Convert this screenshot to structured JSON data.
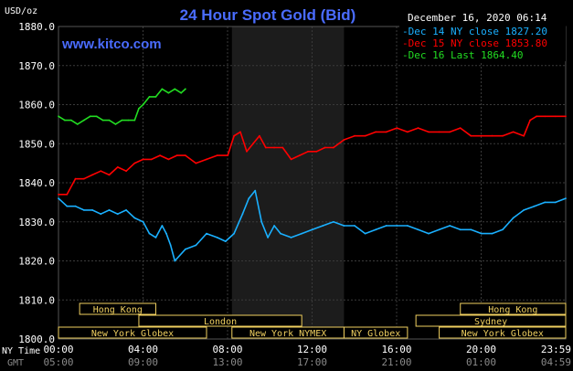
{
  "chart_data": {
    "type": "line",
    "title": "24 Hour Spot Gold (Bid)",
    "website": "www.kitco.com",
    "date_stamp": "December 16, 2020 06:14",
    "ylabel": "USD/oz",
    "ylim": [
      1800,
      1880
    ],
    "y_ticks": [
      "1800.0",
      "1810.0",
      "1820.0",
      "1830.0",
      "1840.0",
      "1850.0",
      "1860.0",
      "1870.0",
      "1880.0"
    ],
    "x_axis_label": "NY Time",
    "x_ticks": [
      "00:00",
      "04:00",
      "08:00",
      "12:00",
      "16:00",
      "20:00",
      "23:59"
    ],
    "gmt_axis_label": "GMT",
    "gmt_ticks": [
      "05:00",
      "09:00",
      "13:00",
      "17:00",
      "21:00",
      "01:00",
      "04:59"
    ],
    "x_range_hours": [
      0,
      23.98
    ],
    "grid": true,
    "legend_position": "top-right",
    "series": [
      {
        "name": "Dec 14 NY close 1827.20",
        "color": "#1ab0ff",
        "x": [
          0,
          0.4,
          0.8,
          1.2,
          1.6,
          2.0,
          2.4,
          2.8,
          3.2,
          3.6,
          4.0,
          4.3,
          4.6,
          4.9,
          5.1,
          5.3,
          5.5,
          6.0,
          6.5,
          7.0,
          7.5,
          7.9,
          8.3,
          8.7,
          9.0,
          9.3,
          9.6,
          9.9,
          10.2,
          10.5,
          11.0,
          11.5,
          12.0,
          12.5,
          13.0,
          13.5,
          14.0,
          14.5,
          15.0,
          15.5,
          16.0,
          16.5,
          17.0,
          17.5,
          18.0,
          18.5,
          19.0,
          19.5,
          20.0,
          20.5,
          21.0,
          21.5,
          22.0,
          22.5,
          23.0,
          23.5,
          23.98
        ],
        "values": [
          1836,
          1834,
          1834,
          1833,
          1833,
          1832,
          1833,
          1832,
          1833,
          1831,
          1830,
          1827,
          1826,
          1829,
          1827,
          1824,
          1820,
          1823,
          1824,
          1827,
          1826,
          1825,
          1827,
          1832,
          1836,
          1838,
          1830,
          1826,
          1829,
          1827,
          1826,
          1827,
          1828,
          1829,
          1830,
          1829,
          1829,
          1827,
          1828,
          1829,
          1829,
          1829,
          1828,
          1827,
          1828,
          1829,
          1828,
          1828,
          1827,
          1827,
          1828,
          1831,
          1833,
          1834,
          1835,
          1835,
          1836
        ]
      },
      {
        "name": "Dec 15 NY close 1853.80",
        "color": "#ff0000",
        "x": [
          0,
          0.4,
          0.8,
          1.2,
          1.6,
          2.0,
          2.4,
          2.8,
          3.2,
          3.6,
          4.0,
          4.4,
          4.8,
          5.2,
          5.6,
          6.0,
          6.5,
          7.0,
          7.5,
          8.0,
          8.3,
          8.6,
          8.9,
          9.2,
          9.5,
          9.8,
          10.2,
          10.6,
          11.0,
          11.4,
          11.8,
          12.2,
          12.6,
          13.0,
          13.5,
          14.0,
          14.5,
          15.0,
          15.5,
          16.0,
          16.5,
          17.0,
          17.5,
          18.0,
          18.5,
          19.0,
          19.5,
          20.0,
          20.5,
          21.0,
          21.5,
          22.0,
          22.3,
          22.6,
          23.0,
          23.5,
          23.98
        ],
        "values": [
          1837,
          1837,
          1841,
          1841,
          1842,
          1843,
          1842,
          1844,
          1843,
          1845,
          1846,
          1846,
          1847,
          1846,
          1847,
          1847,
          1845,
          1846,
          1847,
          1847,
          1852,
          1853,
          1848,
          1850,
          1852,
          1849,
          1849,
          1849,
          1846,
          1847,
          1848,
          1848,
          1849,
          1849,
          1851,
          1852,
          1852,
          1853,
          1853,
          1854,
          1853,
          1854,
          1853,
          1853,
          1853,
          1854,
          1852,
          1852,
          1852,
          1852,
          1853,
          1852,
          1856,
          1857,
          1857,
          1857,
          1857
        ]
      },
      {
        "name": "Dec 16 Last 1864.40",
        "color": "#22dd22",
        "x": [
          0,
          0.3,
          0.6,
          0.9,
          1.2,
          1.5,
          1.8,
          2.1,
          2.4,
          2.7,
          3.0,
          3.3,
          3.6,
          3.8,
          4.0,
          4.3,
          4.6,
          4.9,
          5.2,
          5.5,
          5.8,
          6.0
        ],
        "values": [
          1857,
          1856,
          1856,
          1855,
          1856,
          1857,
          1857,
          1856,
          1856,
          1855,
          1856,
          1856,
          1856,
          1859,
          1860,
          1862,
          1862,
          1864,
          1863,
          1864,
          1863,
          1864
        ]
      }
    ],
    "sessions": [
      {
        "label": "Hong Kong",
        "start": 1.0,
        "end": 4.6,
        "row": 0
      },
      {
        "label": "London",
        "start": 3.8,
        "end": 11.5,
        "row": 1
      },
      {
        "label": "New York NYMEX",
        "start": 8.2,
        "end": 13.5,
        "row": 2
      },
      {
        "label": "New York Globex",
        "start": 0.0,
        "end": 7.0,
        "row": 2
      },
      {
        "label": "NY Globex",
        "start": 13.5,
        "end": 16.5,
        "row": 2
      },
      {
        "label": "New York Globex",
        "start": 18.0,
        "end": 23.98,
        "row": 2
      },
      {
        "label": "Hong Kong",
        "start": 19.0,
        "end": 23.98,
        "row": 0
      },
      {
        "label": "Sydney",
        "start": 16.9,
        "end": 23.98,
        "row": 1
      }
    ],
    "nymex_shade": {
      "start": 8.2,
      "end": 13.5
    },
    "colors": {
      "background": "#000000",
      "title": "#4a6cff",
      "website": "#4a6cff",
      "axis_text": "#ffffff",
      "gmt_text": "#8a8a8a",
      "grid": "#3a3a3a",
      "session_text": "#f0d060",
      "session_box": "#f0d060",
      "shade": "#1c1c1c"
    }
  }
}
